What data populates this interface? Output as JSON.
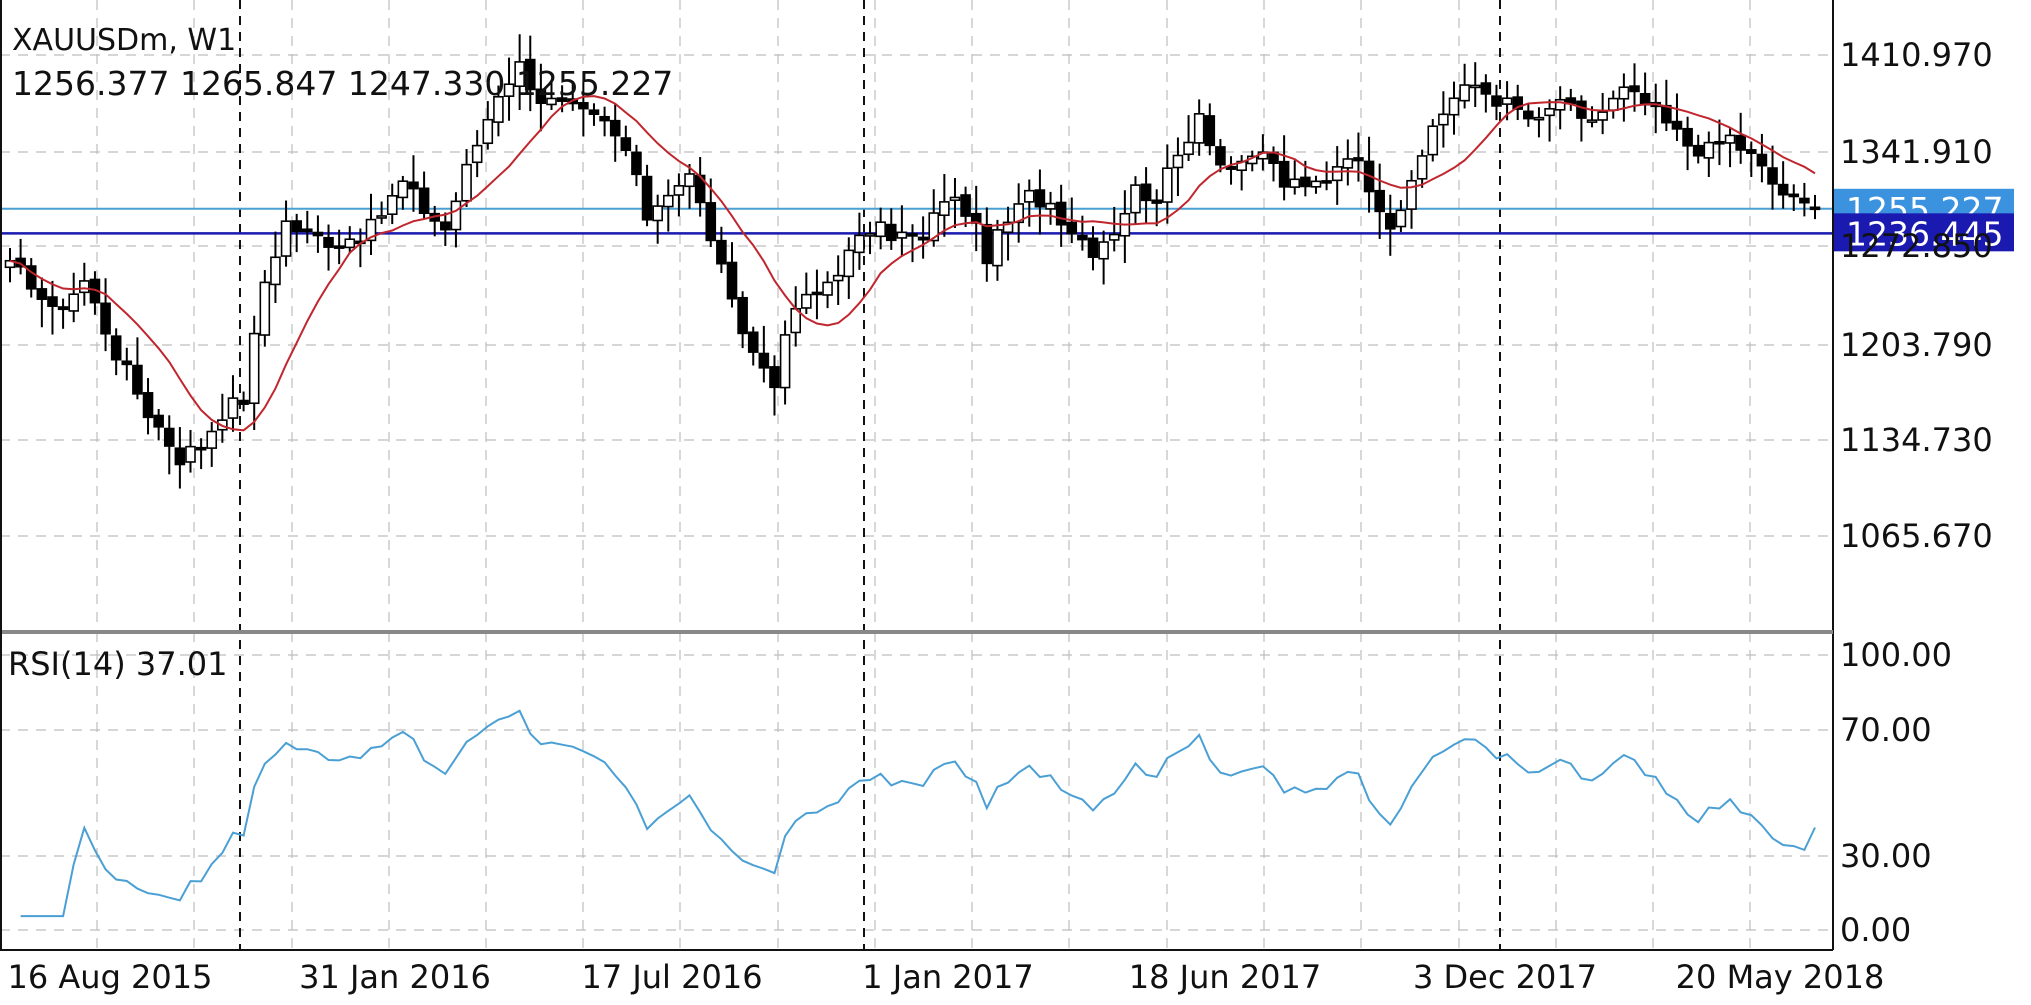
{
  "header": {
    "symbol_timeframe": "XAUUSDm, W1",
    "ohlc": "1256.377 1265.847 1247.330 1255.227"
  },
  "rsi_panel": {
    "label": "RSI(14) 37.01"
  },
  "colors": {
    "background": "#ffffff",
    "grid": "#bdbdbd",
    "candle": "#000000",
    "moving_average": "#c0262d",
    "rsi_line": "#4a9fd4",
    "bid_line": "#4a9fd4",
    "ask_line": "#1a1ab0",
    "bid_badge": "#3b93e0",
    "ask_badge": "#1a1ab0"
  },
  "chart_data": [
    {
      "type": "candlestick",
      "title": "XAUUSDm, W1",
      "ylim": [
        1000,
        1450
      ],
      "y_ticks": [
        "1410.970",
        "1341.910",
        "1272.850",
        "1203.790",
        "1134.730",
        "1065.670"
      ],
      "x_ticks": [
        "16 Aug 2015",
        "31 Jan 2016",
        "17 Jul 2016",
        "1 Jan 2017",
        "18 Jun 2017",
        "3 Dec 2017",
        "20 May 2018"
      ],
      "period_separators": [
        "Dec 2015",
        "Dec 2016",
        "Dec 2017"
      ],
      "price_lines": [
        {
          "name": "bid",
          "value": 1255.227,
          "label": "1255.227"
        },
        {
          "name": "ask",
          "value": 1236.445,
          "label": "1236.445"
        }
      ],
      "anchors": [
        [
          0,
          1210
        ],
        [
          2,
          1200
        ],
        [
          4,
          1175
        ],
        [
          7,
          1200
        ],
        [
          10,
          1145
        ],
        [
          13,
          1100
        ],
        [
          16,
          1065
        ],
        [
          18,
          1075
        ],
        [
          20,
          1100
        ],
        [
          22,
          1110
        ],
        [
          24,
          1200
        ],
        [
          26,
          1245
        ],
        [
          28,
          1235
        ],
        [
          31,
          1230
        ],
        [
          34,
          1240
        ],
        [
          37,
          1275
        ],
        [
          39,
          1255
        ],
        [
          41,
          1240
        ],
        [
          43,
          1285
        ],
        [
          46,
          1345
        ],
        [
          48,
          1365
        ],
        [
          50,
          1340
        ],
        [
          53,
          1330
        ],
        [
          56,
          1320
        ],
        [
          58,
          1300
        ],
        [
          60,
          1250
        ],
        [
          62,
          1270
        ],
        [
          64,
          1280
        ],
        [
          66,
          1235
        ],
        [
          68,
          1180
        ],
        [
          70,
          1145
        ],
        [
          72,
          1125
        ],
        [
          74,
          1180
        ],
        [
          76,
          1190
        ],
        [
          78,
          1210
        ],
        [
          81,
          1240
        ],
        [
          84,
          1235
        ],
        [
          86,
          1230
        ],
        [
          88,
          1265
        ],
        [
          90,
          1255
        ],
        [
          92,
          1220
        ],
        [
          94,
          1245
        ],
        [
          96,
          1265
        ],
        [
          98,
          1260
        ],
        [
          100,
          1240
        ],
        [
          102,
          1225
        ],
        [
          104,
          1240
        ],
        [
          106,
          1270
        ],
        [
          108,
          1265
        ],
        [
          110,
          1295
        ],
        [
          112,
          1330
        ],
        [
          114,
          1290
        ],
        [
          116,
          1285
        ],
        [
          118,
          1300
        ],
        [
          120,
          1275
        ],
        [
          122,
          1270
        ],
        [
          124,
          1280
        ],
        [
          126,
          1300
        ],
        [
          128,
          1275
        ],
        [
          130,
          1245
        ],
        [
          132,
          1270
        ],
        [
          134,
          1320
        ],
        [
          136,
          1340
        ],
        [
          138,
          1350
        ],
        [
          140,
          1340
        ],
        [
          142,
          1330
        ],
        [
          144,
          1320
        ],
        [
          146,
          1340
        ],
        [
          148,
          1320
        ],
        [
          150,
          1330
        ],
        [
          152,
          1345
        ],
        [
          154,
          1335
        ],
        [
          156,
          1320
        ],
        [
          158,
          1305
        ],
        [
          160,
          1300
        ],
        [
          162,
          1310
        ],
        [
          164,
          1295
        ],
        [
          166,
          1275
        ],
        [
          168,
          1260
        ],
        [
          170,
          1255
        ]
      ],
      "moving_average_period": 10,
      "last_ohlc": {
        "open": 1256.377,
        "high": 1265.847,
        "low": 1247.33,
        "close": 1255.227
      }
    },
    {
      "type": "line",
      "title": "RSI(14) 37.01",
      "ylim": [
        0,
        100
      ],
      "y_ticks": [
        "100.00",
        "70.00",
        "30.00",
        "0.00"
      ],
      "series": [
        {
          "name": "RSI(14)",
          "last": 37.01
        }
      ]
    }
  ]
}
